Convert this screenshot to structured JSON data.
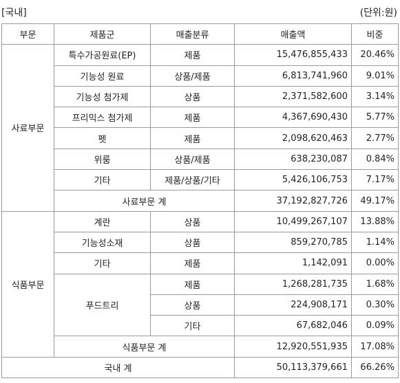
{
  "header": {
    "left": "[국내]",
    "unit": "(단위:원)"
  },
  "table": {
    "columns": [
      "부문",
      "제품군",
      "매출분류",
      "매출액",
      "비중"
    ],
    "sections": [
      {
        "division": "사료부문",
        "groups": [
          {
            "product": "특수가공원료(EP)",
            "items": [
              {
                "class": "제품",
                "amount": "15,476,855,433",
                "ratio": "20.46%"
              }
            ]
          },
          {
            "product": "기능성 원료",
            "items": [
              {
                "class": "상품/제품",
                "amount": "6,813,741,960",
                "ratio": "9.01%"
              }
            ]
          },
          {
            "product": "기능성 첨가제",
            "items": [
              {
                "class": "상품",
                "amount": "2,371,582,600",
                "ratio": "3.14%"
              }
            ]
          },
          {
            "product": "프리믹스 첨가제",
            "items": [
              {
                "class": "제품",
                "amount": "4,367,690,430",
                "ratio": "5.77%"
              }
            ]
          },
          {
            "product": "펫",
            "items": [
              {
                "class": "제품",
                "amount": "2,098,620,463",
                "ratio": "2.77%"
              }
            ]
          },
          {
            "product": "위룸",
            "items": [
              {
                "class": "상품/제품",
                "amount": "638,230,087",
                "ratio": "0.84%"
              }
            ]
          },
          {
            "product": "기타",
            "items": [
              {
                "class": "제품/상품/기타",
                "amount": "5,426,106,753",
                "ratio": "7.17%"
              }
            ]
          }
        ],
        "subtotal": {
          "label": "사료부문 계",
          "amount": "37,192,827,726",
          "ratio": "49.17%"
        }
      },
      {
        "division": "식품부문",
        "groups": [
          {
            "product": "계란",
            "items": [
              {
                "class": "상품",
                "amount": "10,499,267,107",
                "ratio": "13.88%"
              }
            ]
          },
          {
            "product": "기능성소재",
            "items": [
              {
                "class": "상품",
                "amount": "859,270,785",
                "ratio": "1.14%"
              }
            ]
          },
          {
            "product": "기타",
            "items": [
              {
                "class": "제품",
                "amount": "1,142,091",
                "ratio": "0.00%"
              }
            ]
          },
          {
            "product": "푸드트리",
            "items": [
              {
                "class": "제품",
                "amount": "1,268,281,735",
                "ratio": "1.68%"
              },
              {
                "class": "상품",
                "amount": "224,908,171",
                "ratio": "0.30%"
              },
              {
                "class": "기타",
                "amount": "67,682,046",
                "ratio": "0.09%"
              }
            ]
          }
        ],
        "subtotal": {
          "label": "식품부문 계",
          "amount": "12,920,551,935",
          "ratio": "17.08%"
        }
      }
    ],
    "total": {
      "label": "국내 계",
      "amount": "50,113,379,661",
      "ratio": "66.26%"
    }
  }
}
